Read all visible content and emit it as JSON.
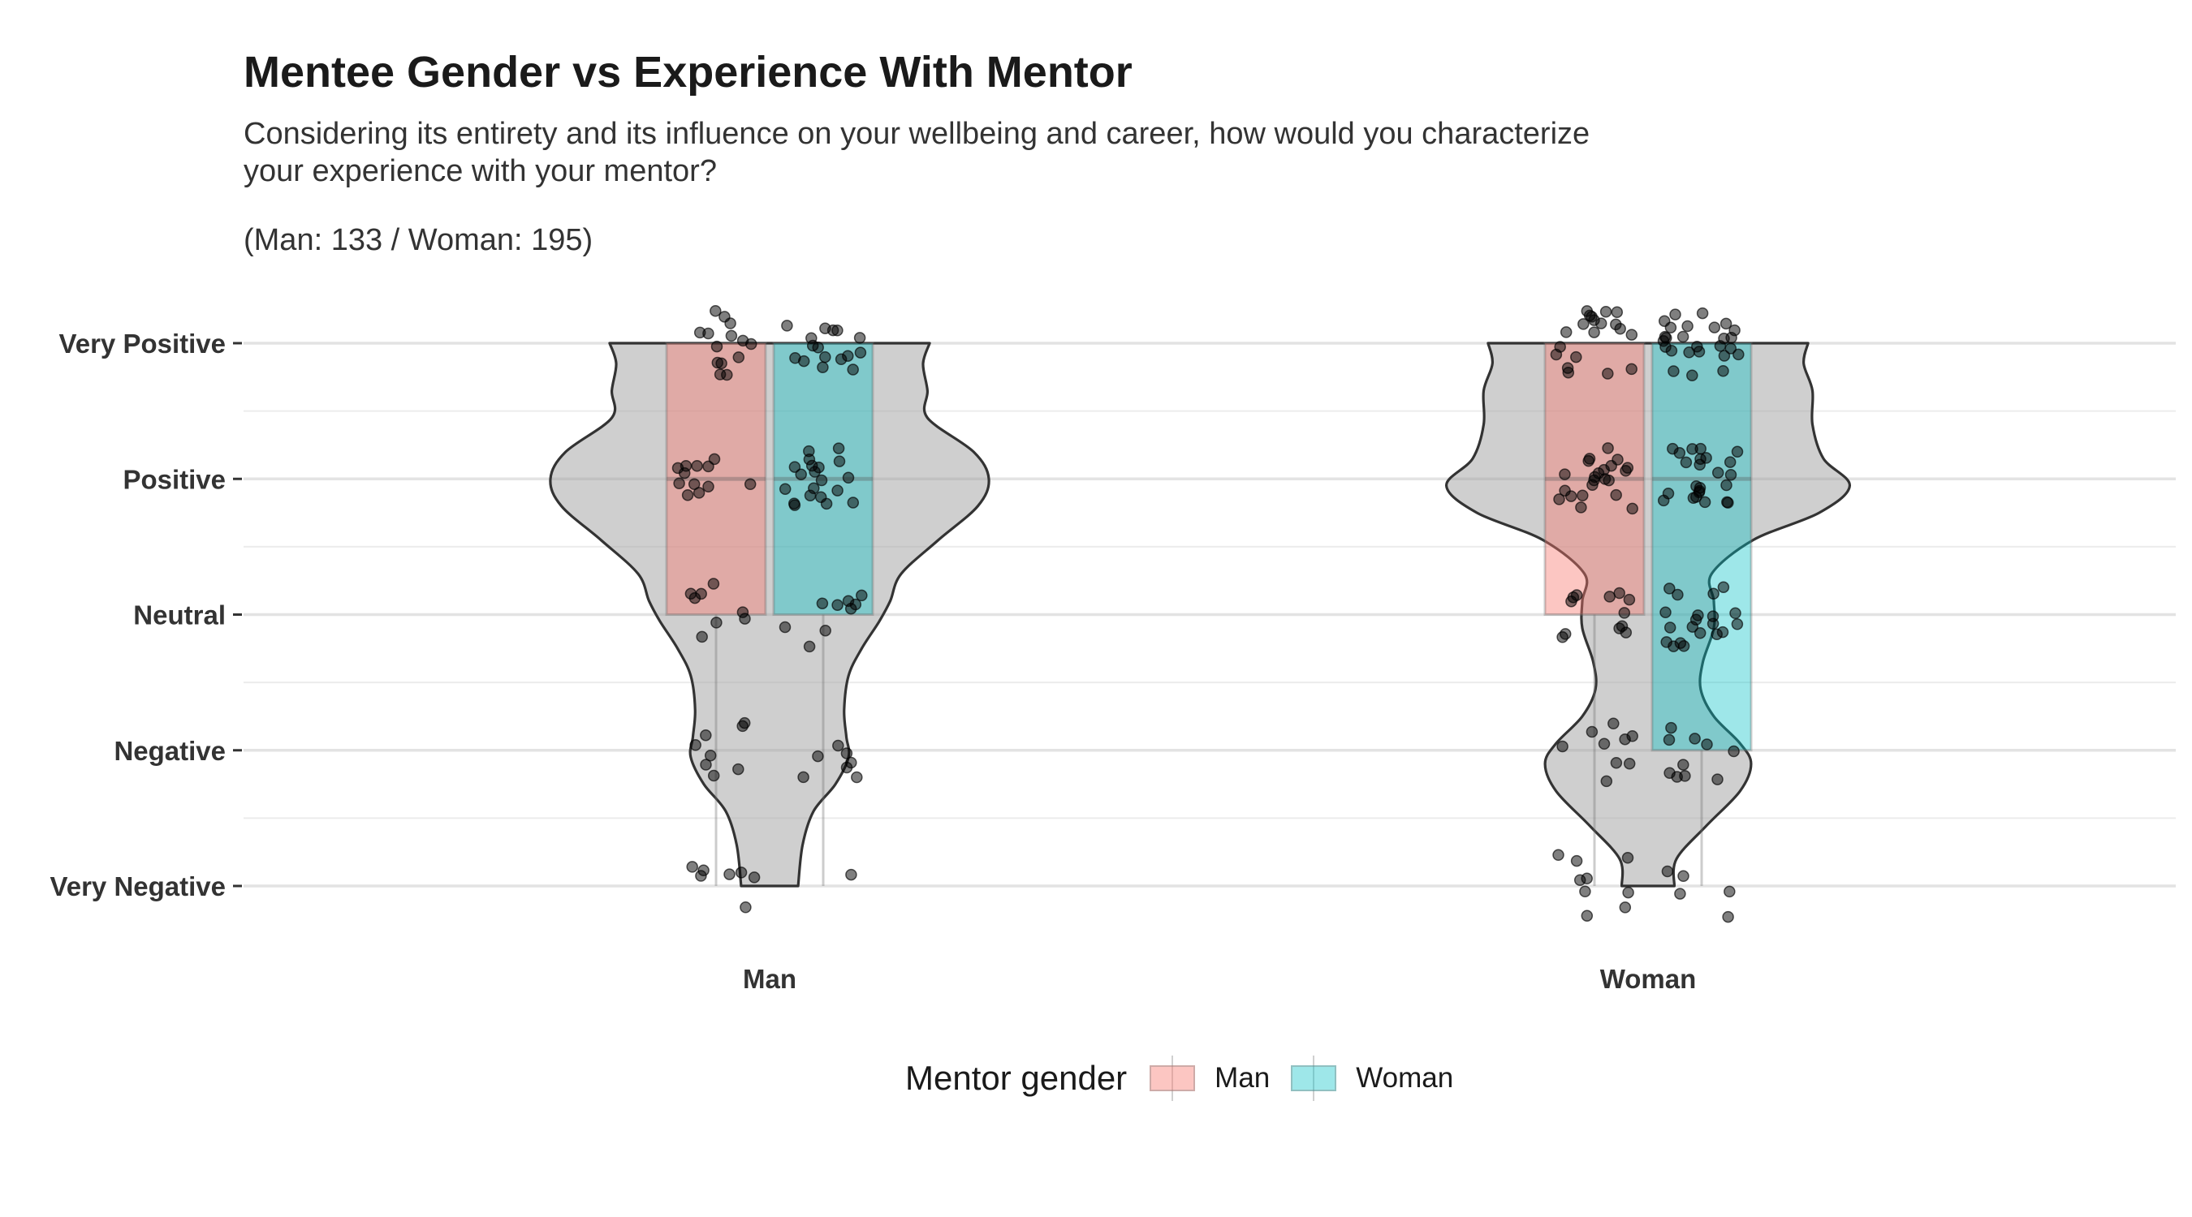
{
  "chart_data": {
    "type": "violin",
    "title": "Mentee Gender vs Experience With Mentor",
    "subtitle": "Considering its entirety and its influence on your wellbeing and career, how would you characterize\nyour experience with your mentor?",
    "note": "(Man: 133 / Woman: 195)",
    "xlabel": "",
    "ylabel": "",
    "categories": [
      "Man",
      "Woman"
    ],
    "y_levels": [
      "Very Negative",
      "Negative",
      "Neutral",
      "Positive",
      "Very Positive"
    ],
    "ylim": [
      1,
      5
    ],
    "grid": true,
    "legend": {
      "title": "Mentor gender",
      "position": "bottom",
      "entries": [
        {
          "name": "Man",
          "color": "#F8766D"
        },
        {
          "name": "Woman",
          "color": "#00BFC4"
        }
      ]
    },
    "violin_half_width": {
      "Man": [
        [
          1.0,
          0.13
        ],
        [
          1.3,
          0.15
        ],
        [
          1.55,
          0.2
        ],
        [
          1.75,
          0.3
        ],
        [
          1.95,
          0.36
        ],
        [
          2.1,
          0.35
        ],
        [
          2.3,
          0.34
        ],
        [
          2.55,
          0.36
        ],
        [
          2.75,
          0.42
        ],
        [
          2.95,
          0.5
        ],
        [
          3.1,
          0.55
        ],
        [
          3.3,
          0.6
        ],
        [
          3.55,
          0.77
        ],
        [
          3.8,
          0.95
        ],
        [
          4.0,
          1.0
        ],
        [
          4.2,
          0.93
        ],
        [
          4.45,
          0.72
        ],
        [
          4.65,
          0.72
        ],
        [
          4.85,
          0.7
        ],
        [
          5.0,
          0.73
        ]
      ],
      "Woman": [
        [
          1.0,
          0.12
        ],
        [
          1.2,
          0.13
        ],
        [
          1.45,
          0.27
        ],
        [
          1.7,
          0.42
        ],
        [
          1.9,
          0.47
        ],
        [
          2.05,
          0.42
        ],
        [
          2.25,
          0.3
        ],
        [
          2.45,
          0.24
        ],
        [
          2.65,
          0.25
        ],
        [
          2.9,
          0.3
        ],
        [
          3.1,
          0.3
        ],
        [
          3.3,
          0.29
        ],
        [
          3.55,
          0.48
        ],
        [
          3.75,
          0.78
        ],
        [
          3.95,
          0.92
        ],
        [
          4.15,
          0.8
        ],
        [
          4.4,
          0.75
        ],
        [
          4.65,
          0.75
        ],
        [
          4.85,
          0.71
        ],
        [
          5.0,
          0.73
        ]
      ]
    },
    "boxplots": [
      {
        "mentee": "Man",
        "mentor": "Man",
        "lower": 3,
        "median": 4,
        "upper": 5,
        "whisker_low": 1,
        "whisker_high": 5
      },
      {
        "mentee": "Man",
        "mentor": "Woman",
        "lower": 3,
        "median": 4,
        "upper": 5,
        "whisker_low": 1,
        "whisker_high": 5
      },
      {
        "mentee": "Woman",
        "mentor": "Man",
        "lower": 3,
        "median": 4,
        "upper": 5,
        "whisker_low": 1,
        "whisker_high": 5
      },
      {
        "mentee": "Woman",
        "mentor": "Woman",
        "lower": 2,
        "median": 4,
        "upper": 5,
        "whisker_low": 1,
        "whisker_high": 5
      }
    ],
    "points": {
      "Man": {
        "Man": {
          "Very Positive": 14,
          "Positive": 12,
          "Neutral": 8,
          "Negative": 8,
          "Very Negative": 7
        },
        "Woman": {
          "Very Positive": 16,
          "Positive": 20,
          "Neutral": 9,
          "Negative": 7,
          "Very Negative": 1
        }
      },
      "Woman": {
        "Man": {
          "Very Positive": 20,
          "Positive": 22,
          "Neutral": 12,
          "Negative": 9,
          "Very Negative": 9
        },
        "Woman": {
          "Very Positive": 26,
          "Positive": 24,
          "Neutral": 20,
          "Negative": 10,
          "Very Negative": 5
        }
      }
    }
  }
}
